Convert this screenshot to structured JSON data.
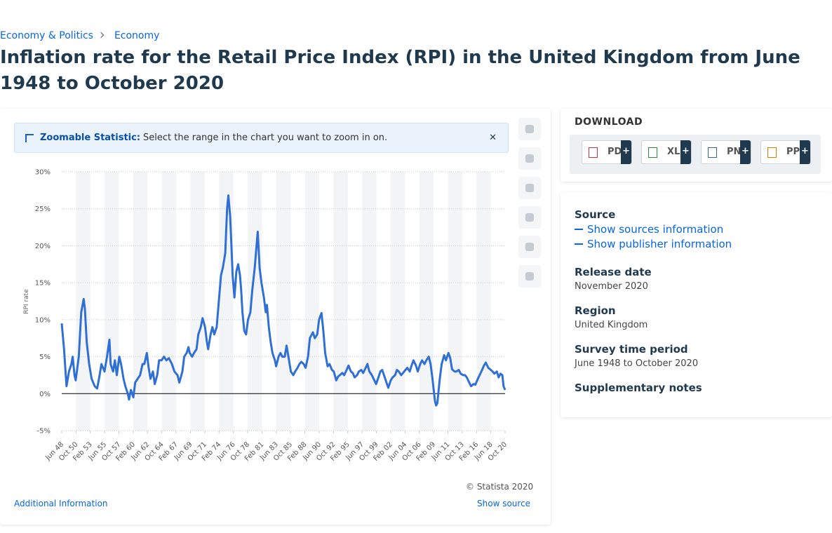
{
  "breadcrumb": [
    "Economy & Politics",
    "Economy"
  ],
  "title": "Inflation rate for the Retail Price Index (RPI) in the United Kingdom from June 1948 to October 2020",
  "zoom_notice": {
    "label": "Zoomable Statistic:",
    "text": "Select the range in the chart you want to zoom in on."
  },
  "chart_data": {
    "type": "line",
    "y_label": "RPI rate",
    "color": "#2f6fd6",
    "grid": true,
    "x": [
      1948.42,
      1948.8,
      1949.2,
      1949.6,
      1950.0,
      1950.2,
      1950.5,
      1950.7,
      1951.2,
      1951.6,
      1952.0,
      1952.2,
      1952.5,
      1952.9,
      1953.3,
      1953.8,
      1954.2,
      1954.5,
      1954.9,
      1955.4,
      1955.8,
      1956.2,
      1956.4,
      1956.8,
      1957.1,
      1957.4,
      1957.8,
      1958.1,
      1958.5,
      1958.8,
      1959.2,
      1959.4,
      1959.7,
      1960.1,
      1960.4,
      1960.8,
      1961.2,
      1961.6,
      1961.9,
      1962.3,
      1962.6,
      1962.9,
      1963.3,
      1963.6,
      1964.0,
      1964.3,
      1964.7,
      1965.1,
      1965.5,
      1965.9,
      1966.4,
      1966.8,
      1967.3,
      1967.6,
      1968.1,
      1968.4,
      1968.8,
      1969.1,
      1969.3,
      1969.7,
      1970.0,
      1970.4,
      1970.7,
      1971.1,
      1971.4,
      1971.8,
      1972.1,
      1972.3,
      1972.7,
      1973.0,
      1973.3,
      1973.7,
      1974.0,
      1974.4,
      1974.7,
      1975.1,
      1975.4,
      1975.6,
      1975.9,
      1976.1,
      1976.3,
      1976.6,
      1976.9,
      1977.2,
      1977.5,
      1977.7,
      1977.9,
      1978.2,
      1978.5,
      1978.8,
      1979.2,
      1979.5,
      1979.9,
      1980.2,
      1980.4,
      1980.7,
      1981.0,
      1981.4,
      1981.7,
      1981.9,
      1982.2,
      1982.5,
      1982.8,
      1983.2,
      1983.4,
      1983.8,
      1984.1,
      1984.4,
      1984.8,
      1985.1,
      1985.5,
      1985.8,
      1986.2,
      1986.5,
      1986.9,
      1987.2,
      1987.5,
      1987.9,
      1988.2,
      1988.6,
      1988.9,
      1989.4,
      1989.7,
      1990.1,
      1990.4,
      1990.8,
      1991.1,
      1991.4,
      1991.8,
      1992.1,
      1992.5,
      1992.8,
      1993.2,
      1993.5,
      1993.8,
      1994.2,
      1994.5,
      1994.9,
      1995.2,
      1995.6,
      1995.9,
      1996.2,
      1996.6,
      1996.9,
      1997.3,
      1997.6,
      1997.9,
      1998.3,
      1998.6,
      1999.0,
      1999.3,
      1999.7,
      2000.0,
      2000.4,
      2000.7,
      2001.0,
      2001.4,
      2001.7,
      2002.1,
      2002.4,
      2002.8,
      2003.1,
      2003.4,
      2003.8,
      2004.1,
      2004.5,
      2004.8,
      2005.2,
      2005.5,
      2005.8,
      2006.2,
      2006.5,
      2006.9,
      2007.2,
      2007.6,
      2007.9,
      2008.3,
      2008.6,
      2008.9,
      2009.3,
      2009.5,
      2009.7,
      2010.1,
      2010.4,
      2010.8,
      2011.1,
      2011.5,
      2011.8,
      2012.1,
      2012.5,
      2012.8,
      2013.2,
      2013.5,
      2013.9,
      2014.2,
      2014.5,
      2014.9,
      2015.2,
      2015.6,
      2015.9,
      2016.3,
      2016.6,
      2017.0,
      2017.3,
      2017.6,
      2018.0,
      2018.3,
      2018.7,
      2019.0,
      2019.4,
      2019.7,
      2020.0,
      2020.3,
      2020.5,
      2020.75
    ],
    "values": [
      9.5,
      6,
      1,
      3,
      4,
      5,
      2.5,
      1.8,
      5,
      11,
      12.8,
      11.5,
      7,
      4,
      2,
      1,
      0.7,
      2,
      4,
      3,
      5,
      7.3,
      4,
      3,
      4.5,
      2.5,
      5,
      4,
      2,
      1,
      0,
      -0.8,
      0.5,
      -0.5,
      1.5,
      2,
      2.5,
      4,
      4,
      5.5,
      3.5,
      2,
      3,
      1.3,
      2.5,
      4.5,
      4.5,
      5,
      4.5,
      4.8,
      4,
      3,
      2.5,
      1.5,
      3,
      5,
      5.5,
      6.3,
      5.5,
      5,
      5.5,
      6,
      8,
      9,
      10.2,
      9,
      7,
      6,
      8,
      9,
      8,
      9,
      12,
      16,
      17,
      19,
      25,
      26.8,
      24,
      20,
      16,
      13,
      16.5,
      17.5,
      16,
      14,
      11,
      8.5,
      8,
      10,
      11,
      14,
      17,
      20,
      21.9,
      17,
      15,
      13,
      11,
      12,
      9,
      7,
      5.5,
      4.5,
      3.7,
      5,
      5.5,
      5,
      5,
      6.5,
      4.5,
      3,
      2.5,
      3,
      3.5,
      4,
      4.3,
      4,
      3.5,
      5,
      7.5,
      8.3,
      7.5,
      8,
      10,
      10.9,
      8.5,
      5.5,
      3.7,
      4,
      3.2,
      3,
      1.8,
      2.3,
      2.5,
      2.8,
      2.5,
      3.2,
      3.8,
      3,
      2.8,
      2.2,
      2.5,
      3,
      3.2,
      2.8,
      3.3,
      4,
      3,
      2.5,
      2,
      1.3,
      2,
      3,
      3.2,
      2.5,
      1.5,
      0.8,
      1.8,
      2.2,
      2.5,
      3.2,
      3,
      2.5,
      2.8,
      3.2,
      3.5,
      3,
      3.8,
      4.5,
      3.8,
      3,
      4,
      4.5,
      4,
      4.5,
      5,
      4,
      2,
      -1,
      -1.6,
      -1.3,
      2,
      4,
      5.2,
      4.5,
      5.5,
      4.8,
      3.3,
      3,
      3,
      3.2,
      2.7,
      2.5,
      2.5,
      2.2,
      1.5,
      1,
      1.3,
      1.2,
      2,
      2.5,
      3.2,
      3.8,
      4.2,
      3.5,
      3.3,
      3,
      2.7,
      3,
      2.2,
      2.7,
      2.5,
      1,
      0.5
    ],
    "xlim": [
      1948.42,
      2020.75
    ],
    "xticks": [
      {
        "value": 1948.42,
        "label": "Jun 48"
      },
      {
        "value": 1950.75,
        "label": "Oct 50"
      },
      {
        "value": 1953.08,
        "label": "Feb 53"
      },
      {
        "value": 1955.42,
        "label": "Jun 55"
      },
      {
        "value": 1957.75,
        "label": "Oct 57"
      },
      {
        "value": 1960.08,
        "label": "Feb 60"
      },
      {
        "value": 1962.42,
        "label": "Jun 62"
      },
      {
        "value": 1964.75,
        "label": "Oct 64"
      },
      {
        "value": 1967.08,
        "label": "Feb 67"
      },
      {
        "value": 1969.42,
        "label": "Jun 69"
      },
      {
        "value": 1971.75,
        "label": "Oct 71"
      },
      {
        "value": 1974.08,
        "label": "Feb 74"
      },
      {
        "value": 1976.42,
        "label": "Jun 76"
      },
      {
        "value": 1978.75,
        "label": "Oct 78"
      },
      {
        "value": 1981.08,
        "label": "Feb 81"
      },
      {
        "value": 1983.42,
        "label": "Jun 83"
      },
      {
        "value": 1985.75,
        "label": "Oct 85"
      },
      {
        "value": 1988.08,
        "label": "Feb 88"
      },
      {
        "value": 1990.42,
        "label": "Jun 90"
      },
      {
        "value": 1992.75,
        "label": "Oct 92"
      },
      {
        "value": 1995.08,
        "label": "Feb 95"
      },
      {
        "value": 1997.42,
        "label": "Jun 97"
      },
      {
        "value": 1999.75,
        "label": "Oct 99"
      },
      {
        "value": 2002.08,
        "label": "Feb 02"
      },
      {
        "value": 2004.42,
        "label": "Jun 04"
      },
      {
        "value": 2006.75,
        "label": "Oct 06"
      },
      {
        "value": 2009.08,
        "label": "Feb 09"
      },
      {
        "value": 2011.42,
        "label": "Jun 11"
      },
      {
        "value": 2013.75,
        "label": "Oct 13"
      },
      {
        "value": 2016.08,
        "label": "Feb 16"
      },
      {
        "value": 2018.42,
        "label": "Jun 18"
      },
      {
        "value": 2020.75,
        "label": "Oct 20"
      }
    ],
    "ylim": [
      -5,
      30
    ],
    "yticks": [
      {
        "value": -5,
        "label": "-5%"
      },
      {
        "value": 0,
        "label": "0%"
      },
      {
        "value": 5,
        "label": "5%"
      },
      {
        "value": 10,
        "label": "10%"
      },
      {
        "value": 15,
        "label": "15%"
      },
      {
        "value": 20,
        "label": "20%"
      },
      {
        "value": 25,
        "label": "25%"
      },
      {
        "value": 30,
        "label": "30%"
      }
    ]
  },
  "credit": "© Statista 2020",
  "links": {
    "additional": "Additional Information",
    "show_source": "Show source"
  },
  "download": {
    "title": "DOWNLOAD",
    "formats": [
      "PDF",
      "XLS",
      "PNG",
      "PPT"
    ],
    "more": "+"
  },
  "details": {
    "source": {
      "label": "Source",
      "links": [
        "Show sources information",
        "Show publisher information"
      ]
    },
    "release": {
      "label": "Release date",
      "value": "November 2020"
    },
    "region": {
      "label": "Region",
      "value": "United Kingdom"
    },
    "period": {
      "label": "Survey time period",
      "value": "June 1948 to October 2020"
    },
    "notes": {
      "label": "Supplementary notes"
    }
  }
}
